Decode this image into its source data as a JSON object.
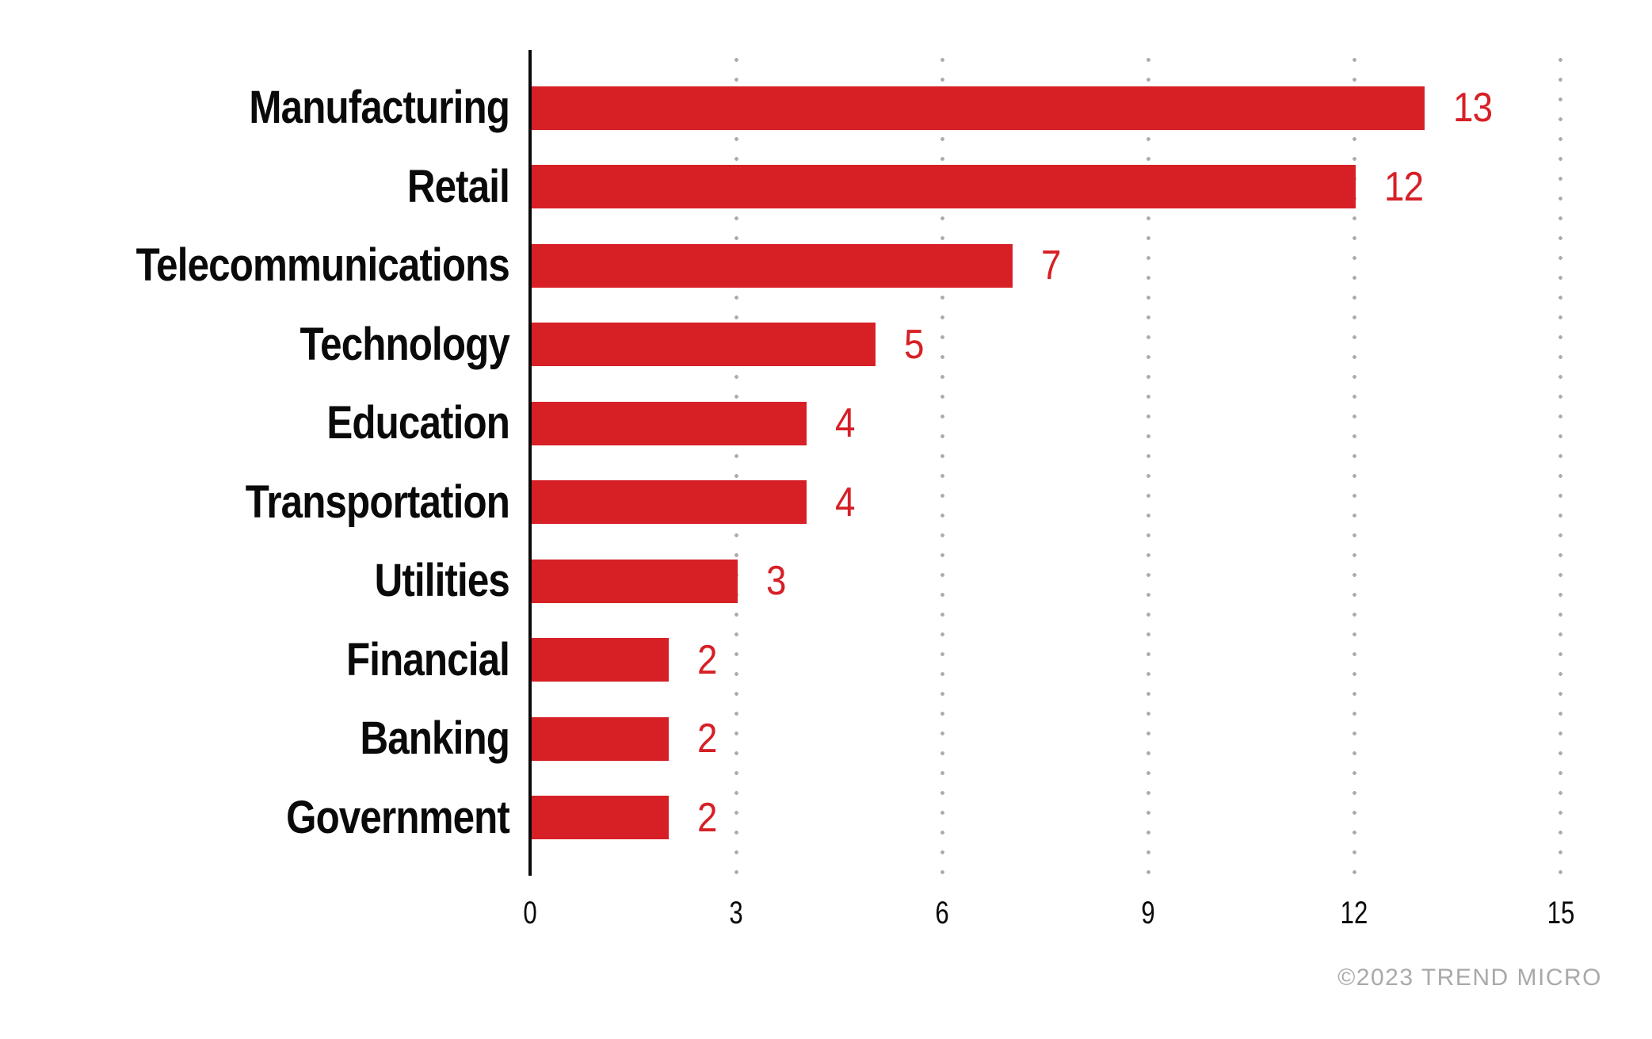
{
  "chart_data": {
    "type": "bar",
    "orientation": "horizontal",
    "title": "",
    "xlabel": "",
    "ylabel": "",
    "categories": [
      "Manufacturing",
      "Retail",
      "Telecommunications",
      "Technology",
      "Education",
      "Transportation",
      "Utilities",
      "Financial",
      "Banking",
      "Government"
    ],
    "values": [
      13,
      12,
      7,
      5,
      4,
      4,
      3,
      2,
      2,
      2
    ],
    "xticks": [
      0,
      3,
      6,
      9,
      12,
      15
    ],
    "xlim": [
      0,
      15
    ],
    "grid": "dotted-vertical",
    "legend": "none",
    "colors": {
      "bar": "#d71f26",
      "value_label": "#d71f26",
      "category_label": "#0a0a0a",
      "axis": "#0a0a0a",
      "gridline_dots": "#ababab",
      "tick_label": "#0a0a0a",
      "background": "#ffffff"
    }
  },
  "footer": {
    "copyright": "©2023 TREND MICRO"
  }
}
